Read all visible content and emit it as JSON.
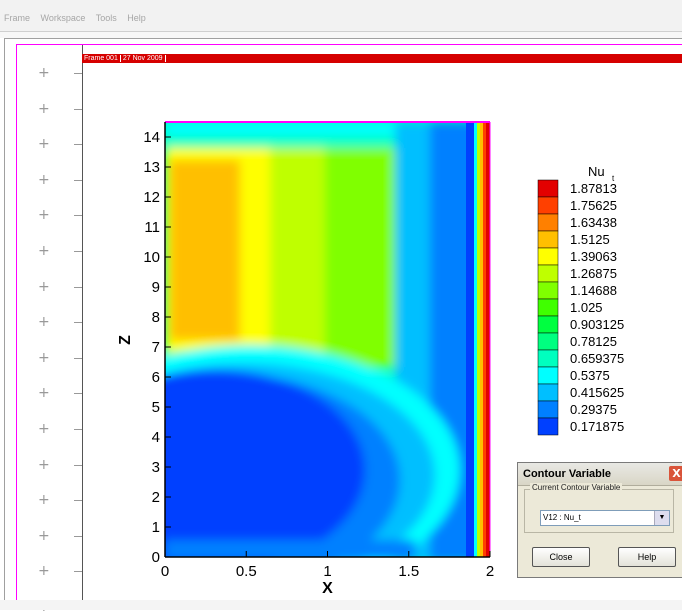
{
  "menu": {
    "items": [
      "Frame",
      "Workspace",
      "Tools",
      "Help"
    ]
  },
  "frame_header": {
    "frame": "Frame 001",
    "date": "27 Nov 2009"
  },
  "ruler_marks": [
    {
      "row": 0
    },
    {
      "row": 1
    },
    {
      "row": 2
    },
    {
      "row": 3
    },
    {
      "row": 4
    },
    {
      "row": 5
    },
    {
      "row": 6
    },
    {
      "row": 7
    },
    {
      "row": 8
    },
    {
      "row": 9
    },
    {
      "row": 10
    },
    {
      "row": 11
    },
    {
      "row": 12
    },
    {
      "row": 13
    },
    {
      "row": 14
    },
    {
      "row": 15
    }
  ],
  "chart_data": {
    "type": "heatmap",
    "xlabel": "X",
    "ylabel": "Z",
    "xlim": [
      0,
      2
    ],
    "ylim": [
      0,
      14.5
    ],
    "x_ticks": [
      "0",
      "0.5",
      "1",
      "1.5",
      "2"
    ],
    "y_ticks": [
      "0",
      "1",
      "2",
      "3",
      "4",
      "5",
      "6",
      "7",
      "8",
      "9",
      "10",
      "11",
      "12",
      "13",
      "14"
    ],
    "legend": {
      "title": "Nu",
      "title_sub": "t",
      "placement": "right",
      "levels": [
        "1.87813",
        "1.75625",
        "1.63438",
        "1.5125",
        "1.39063",
        "1.26875",
        "1.14688",
        "1.025",
        "0.903125",
        "0.78125",
        "0.659375",
        "0.5375",
        "0.415625",
        "0.29375",
        "0.171875"
      ],
      "colors": [
        "#e30000",
        "#ff4000",
        "#ff8000",
        "#ffbf00",
        "#ffff00",
        "#bfff00",
        "#80ff00",
        "#40ff00",
        "#00ff40",
        "#00ff80",
        "#00ffbf",
        "#00ffff",
        "#00bfff",
        "#0080ff",
        "#0040ff"
      ]
    }
  },
  "dialog": {
    "title": "Contour Variable",
    "close_glyph": "X",
    "group_label": "Current Contour Variable",
    "selected": "V12 : Nu_t",
    "close_label": "Close",
    "help_label": "Help"
  }
}
